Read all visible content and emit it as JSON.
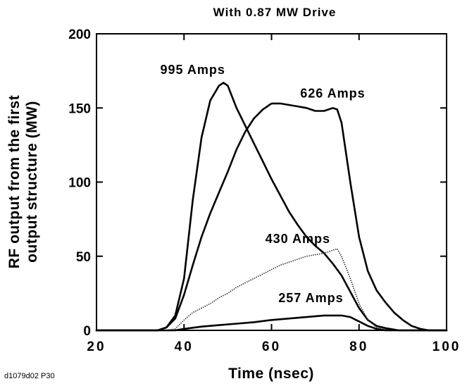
{
  "chart_data": {
    "type": "line",
    "title": "With 0.87 MW Drive",
    "xlabel": "Time (nsec)",
    "ylabel_lines": [
      "RF output from the first",
      "output structure (MW)"
    ],
    "xlim": [
      20,
      100
    ],
    "ylim": [
      0,
      200
    ],
    "x_ticks": [
      20,
      40,
      60,
      80,
      100
    ],
    "y_ticks": [
      0,
      50,
      100,
      150,
      200
    ],
    "grid": false,
    "series": [
      {
        "name": "995 Amps",
        "style": "solid",
        "x": [
          20,
          34,
          36,
          38,
          40,
          42,
          44,
          46,
          48,
          49,
          50,
          52,
          54,
          56,
          58,
          60,
          62,
          64,
          66,
          68,
          70,
          72,
          74,
          76,
          78,
          80,
          82,
          84,
          86,
          88,
          89,
          90,
          100
        ],
        "y": [
          0,
          0,
          2,
          10,
          35,
          88,
          130,
          155,
          165,
          167,
          165,
          150,
          138,
          126,
          114,
          102,
          91,
          80,
          71,
          63,
          57,
          52,
          45,
          37,
          26,
          15,
          7,
          3,
          1.5,
          0.5,
          0,
          0,
          0
        ]
      },
      {
        "name": "626 Amps",
        "style": "solid",
        "x": [
          20,
          34,
          36,
          38,
          40,
          42,
          44,
          46,
          48,
          50,
          52,
          54,
          56,
          58,
          60,
          62,
          64,
          66,
          68,
          70,
          72,
          74,
          75,
          76,
          78,
          80,
          82,
          84,
          86,
          88,
          90,
          92,
          94,
          96,
          100
        ],
        "y": [
          0,
          0,
          2,
          8,
          24,
          44,
          63,
          79,
          93,
          107,
          122,
          134,
          143,
          149,
          153,
          153,
          152,
          151,
          150,
          148,
          148,
          150,
          149,
          140,
          100,
          63,
          40,
          27,
          19,
          12,
          7,
          3,
          1,
          0,
          0
        ]
      },
      {
        "name": "430 Amps",
        "style": "dotted",
        "x": [
          20,
          36,
          38,
          40,
          42,
          44,
          46,
          48,
          50,
          52,
          54,
          56,
          58,
          60,
          62,
          64,
          66,
          68,
          70,
          72,
          74,
          75,
          76,
          78,
          80,
          82,
          84,
          86,
          88,
          90,
          100
        ],
        "y": [
          0,
          0,
          1,
          7,
          12,
          15,
          18,
          22,
          25,
          29,
          32,
          35,
          38,
          41,
          44,
          46,
          48,
          50,
          51,
          52,
          54,
          55,
          50,
          35,
          18,
          7,
          2,
          0.5,
          0,
          0,
          0
        ]
      },
      {
        "name": "257 Amps",
        "style": "solid",
        "x": [
          20,
          38,
          40,
          44,
          48,
          52,
          56,
          60,
          64,
          68,
          72,
          76,
          78,
          80,
          82,
          84,
          86,
          100
        ],
        "y": [
          0,
          0,
          1,
          2.5,
          3.5,
          4.5,
          5.5,
          7,
          8,
          9,
          10,
          10,
          9,
          6,
          3,
          1,
          0,
          0
        ]
      }
    ],
    "annotations": [
      {
        "text": "995 Amps",
        "x": 42,
        "y": 173
      },
      {
        "text": "626 Amps",
        "x": 74,
        "y": 157
      },
      {
        "text": "430 Amps",
        "x": 66,
        "y": 59
      },
      {
        "text": "257 Amps",
        "x": 69,
        "y": 19
      }
    ],
    "footnote": "d1079d02 P30"
  }
}
